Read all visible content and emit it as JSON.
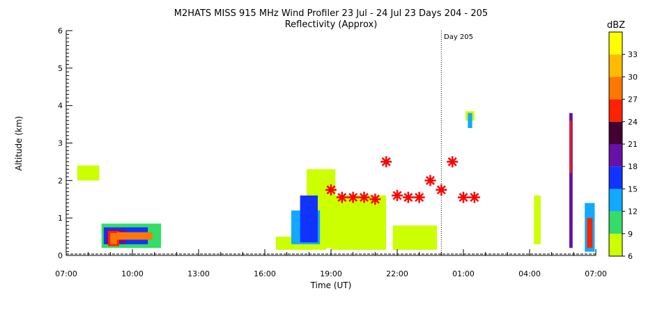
{
  "chart_data": {
    "type": "heatmap",
    "title": "M2HATS MISS 915 MHz Wind Profiler  23 Jul - 24 Jul 23 Days 204 - 205",
    "subtitle": "Reflectivity (Approx)",
    "xlabel": "Time (UT)",
    "ylabel": "Altitude (km)",
    "xlim_hours": [
      7,
      31
    ],
    "ylim": [
      0,
      6
    ],
    "x_ticks": [
      {
        "label": "07:00",
        "hour": 7
      },
      {
        "label": "10:00",
        "hour": 10
      },
      {
        "label": "13:00",
        "hour": 13
      },
      {
        "label": "16:00",
        "hour": 16
      },
      {
        "label": "19:00",
        "hour": 19
      },
      {
        "label": "22:00",
        "hour": 22
      },
      {
        "label": "01:00",
        "hour": 25
      },
      {
        "label": "04:00",
        "hour": 28
      },
      {
        "label": "07:00",
        "hour": 31
      }
    ],
    "y_ticks": [
      "0",
      "1",
      "2",
      "3",
      "4",
      "5",
      "6"
    ],
    "day_marker": {
      "label": "Day 205",
      "hour": 24
    },
    "colorbar": {
      "title": "dBZ",
      "ticks": [
        "6",
        "9",
        "12",
        "15",
        "18",
        "21",
        "24",
        "27",
        "30",
        "33"
      ],
      "bins": [
        {
          "from": 6,
          "to": 9,
          "color": "#ccff00"
        },
        {
          "from": 9,
          "to": 12,
          "color": "#33dd66"
        },
        {
          "from": 12,
          "to": 15,
          "color": "#11aaff"
        },
        {
          "from": 15,
          "to": 18,
          "color": "#1133ff"
        },
        {
          "from": 18,
          "to": 21,
          "color": "#6611aa"
        },
        {
          "from": 21,
          "to": 24,
          "color": "#440033"
        },
        {
          "from": 24,
          "to": 27,
          "color": "#ff2200"
        },
        {
          "from": 27,
          "to": 30,
          "color": "#ff7700"
        },
        {
          "from": 30,
          "to": 33,
          "color": "#ffbb00"
        },
        {
          "from": 33,
          "to": 36,
          "color": "#ffff00"
        }
      ]
    },
    "regions": [
      {
        "x0": 8.6,
        "x1": 11.3,
        "y0": 0.2,
        "y1": 0.85,
        "dbz": 9
      },
      {
        "x0": 8.7,
        "x1": 10.7,
        "y0": 0.3,
        "y1": 0.75,
        "dbz": 16
      },
      {
        "x0": 8.8,
        "x1": 9.7,
        "y0": 0.3,
        "y1": 0.7,
        "dbz": 20
      },
      {
        "x0": 8.9,
        "x1": 9.4,
        "y0": 0.25,
        "y1": 0.65,
        "dbz": 25
      },
      {
        "x0": 9.0,
        "x1": 9.3,
        "y0": 0.3,
        "y1": 0.6,
        "dbz": 28
      },
      {
        "x0": 9.3,
        "x1": 10.9,
        "y0": 0.42,
        "y1": 0.62,
        "dbz": 28
      },
      {
        "x0": 7.5,
        "x1": 8.5,
        "y0": 2.0,
        "y1": 2.4,
        "dbz": 8
      },
      {
        "x0": 17.9,
        "x1": 19.2,
        "y0": 0.2,
        "y1": 2.3,
        "dbz": 8
      },
      {
        "x0": 16.5,
        "x1": 18.8,
        "y0": 0.15,
        "y1": 0.5,
        "dbz": 8
      },
      {
        "x0": 17.2,
        "x1": 18.5,
        "y0": 0.3,
        "y1": 1.2,
        "dbz": 13
      },
      {
        "x0": 17.6,
        "x1": 18.4,
        "y0": 0.35,
        "y1": 1.6,
        "dbz": 16
      },
      {
        "x0": 19.0,
        "x1": 21.5,
        "y0": 0.15,
        "y1": 1.6,
        "dbz": 7
      },
      {
        "x0": 21.8,
        "x1": 23.8,
        "y0": 0.15,
        "y1": 0.8,
        "dbz": 7
      },
      {
        "x0": 25.1,
        "x1": 25.5,
        "y0": 3.6,
        "y1": 3.85,
        "dbz": 8
      },
      {
        "x0": 25.2,
        "x1": 25.4,
        "y0": 3.4,
        "y1": 3.8,
        "dbz": 13
      },
      {
        "x0": 28.2,
        "x1": 28.5,
        "y0": 0.3,
        "y1": 1.6,
        "dbz": 8
      },
      {
        "x0": 29.8,
        "x1": 29.95,
        "y0": 0.2,
        "y1": 3.8,
        "dbz": 20
      },
      {
        "x0": 29.82,
        "x1": 29.9,
        "y0": 2.2,
        "y1": 3.6,
        "dbz": 25
      },
      {
        "x0": 30.5,
        "x1": 30.95,
        "y0": 0.1,
        "y1": 1.4,
        "dbz": 14
      },
      {
        "x0": 30.6,
        "x1": 30.85,
        "y0": 0.2,
        "y1": 1.0,
        "dbz": 25
      }
    ],
    "markers": {
      "color": "#ff0000",
      "points": [
        {
          "x": 19.0,
          "y": 1.75
        },
        {
          "x": 19.5,
          "y": 1.55
        },
        {
          "x": 20.0,
          "y": 1.55
        },
        {
          "x": 20.5,
          "y": 1.55
        },
        {
          "x": 21.0,
          "y": 1.5
        },
        {
          "x": 21.5,
          "y": 2.5
        },
        {
          "x": 22.0,
          "y": 1.6
        },
        {
          "x": 22.5,
          "y": 1.55
        },
        {
          "x": 23.0,
          "y": 1.55
        },
        {
          "x": 23.5,
          "y": 2.0
        },
        {
          "x": 24.0,
          "y": 1.75
        },
        {
          "x": 24.5,
          "y": 2.5
        },
        {
          "x": 25.0,
          "y": 1.55
        },
        {
          "x": 25.5,
          "y": 1.55
        }
      ]
    }
  }
}
